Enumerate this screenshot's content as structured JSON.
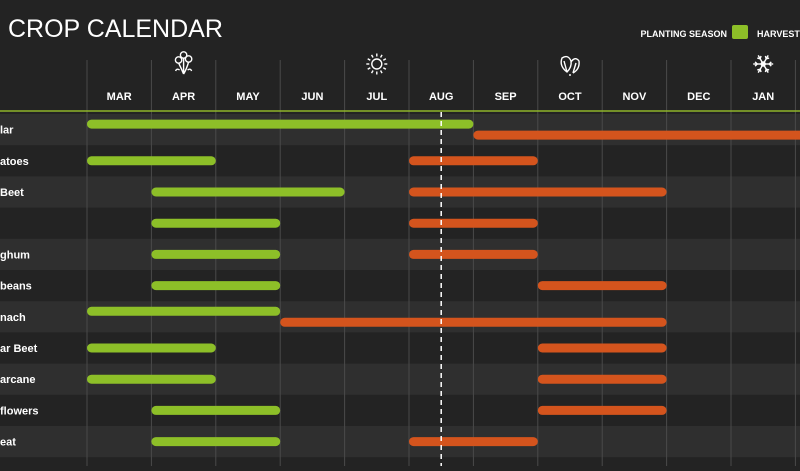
{
  "title": "CROP CALENDAR",
  "colors": {
    "background": "#232323",
    "row_band": "#2f2f2f",
    "grid": "#4a4a4a",
    "header_line": "#8fb52a",
    "planting": "#8dbf28",
    "harvest": "#d4541d",
    "text": "#ffffff"
  },
  "legend": {
    "items": [
      {
        "label": "PLANTING SEASON",
        "color": "#8dbf28"
      },
      {
        "label": "HARVEST",
        "color": "#d4541d"
      }
    ]
  },
  "season_icons": [
    {
      "name": "spring-flower-icon",
      "month": "APR"
    },
    {
      "name": "summer-sun-icon",
      "month": "JUL"
    },
    {
      "name": "autumn-leaves-icon",
      "month": "OCT"
    },
    {
      "name": "winter-snowflake-icon",
      "month": "JAN"
    }
  ],
  "chart_data": {
    "type": "gantt",
    "title": "CROP CALENDAR",
    "months": [
      "MAR",
      "APR",
      "MAY",
      "JUN",
      "JUL",
      "AUG",
      "SEP",
      "OCT",
      "NOV",
      "DEC",
      "JAN"
    ],
    "current_marker_month": 5.5,
    "series": [
      {
        "name": "PLANTING SEASON",
        "color": "#8dbf28"
      },
      {
        "name": "HARVEST",
        "color": "#d4541d"
      }
    ],
    "crops": [
      {
        "label": "lar",
        "planting": [
          0,
          6
        ],
        "harvest": [
          6,
          13
        ]
      },
      {
        "label": "atoes",
        "planting": [
          0,
          2
        ],
        "harvest": [
          5,
          7
        ]
      },
      {
        "label": "Beet",
        "planting": [
          1,
          4
        ],
        "harvest": [
          5,
          9
        ]
      },
      {
        "label": "",
        "planting": [
          1,
          3
        ],
        "harvest": [
          5,
          7
        ]
      },
      {
        "label": "ghum",
        "planting": [
          1,
          3
        ],
        "harvest": [
          5,
          7
        ]
      },
      {
        "label": "beans",
        "planting": [
          1,
          3
        ],
        "harvest": [
          7,
          9
        ]
      },
      {
        "label": "nach",
        "planting": [
          0,
          3
        ],
        "harvest": [
          3,
          9
        ]
      },
      {
        "label": "ar Beet",
        "planting": [
          0,
          2
        ],
        "harvest": [
          7,
          9
        ]
      },
      {
        "label": "arcane",
        "planting": [
          0,
          2
        ],
        "harvest": [
          7,
          9
        ]
      },
      {
        "label": "flowers",
        "planting": [
          1,
          3
        ],
        "harvest": [
          7,
          9
        ]
      },
      {
        "label": "eat",
        "planting": [
          1,
          3
        ],
        "harvest": [
          5,
          7
        ]
      }
    ]
  }
}
